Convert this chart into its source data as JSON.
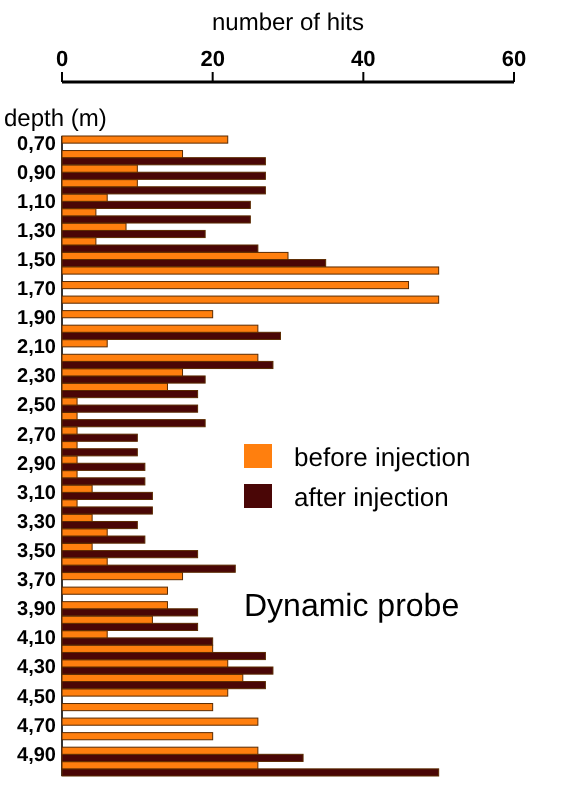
{
  "chart_data": {
    "type": "bar",
    "orientation": "horizontal",
    "xlabel": "number of hits",
    "ylabel": "depth (m)",
    "categories": [
      "0,70",
      null,
      "0,90",
      null,
      "1,10",
      null,
      "1,30",
      null,
      "1,50",
      null,
      "1,70",
      null,
      "1,90",
      null,
      "2,10",
      null,
      "2,30",
      null,
      "2,50",
      null,
      "2,70",
      null,
      "2,90",
      null,
      "3,10",
      null,
      "3,30",
      null,
      "3,50",
      null,
      "3,70",
      null,
      "3,90",
      null,
      "4,10",
      null,
      "4,30",
      null,
      "4,50",
      null,
      "4,70",
      null,
      "4,90",
      null
    ],
    "series": [
      {
        "name": "after injection",
        "color": "#4a0606",
        "values": [
          null,
          27,
          27,
          27,
          25,
          25,
          19,
          26,
          35,
          null,
          null,
          null,
          null,
          29,
          null,
          28,
          19,
          18,
          18,
          19,
          10,
          10,
          11,
          11,
          12,
          12,
          10,
          11,
          18,
          23,
          null,
          null,
          18,
          18,
          20,
          27,
          28,
          27,
          null,
          null,
          null,
          null,
          32,
          50
        ]
      },
      {
        "name": "before injection",
        "color": "#ff7f0e",
        "values": [
          22,
          16,
          10,
          10,
          6,
          4.5,
          8.5,
          4.5,
          30,
          50,
          46,
          50,
          20,
          26,
          6,
          26,
          16,
          14,
          2,
          2,
          2,
          2,
          2,
          2,
          4,
          2,
          4,
          6,
          4,
          6,
          16,
          14,
          14,
          12,
          6,
          20,
          22,
          24,
          22,
          20,
          26,
          20,
          26,
          26
        ]
      }
    ],
    "xlim": [
      0,
      60
    ],
    "xticks": [
      0,
      20,
      40,
      60
    ],
    "legend": "right",
    "annotations": [
      "Dynamic probe"
    ]
  }
}
